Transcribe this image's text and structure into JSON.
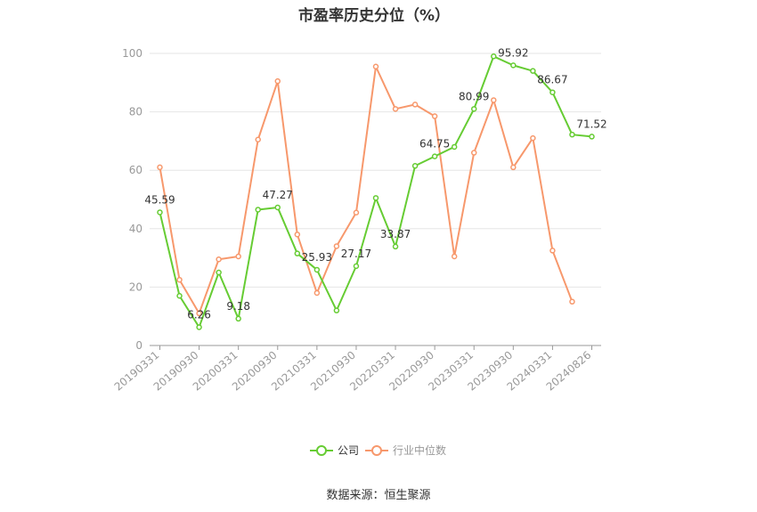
{
  "title": "市盈率历史分位（%）",
  "source": "数据来源：恒生聚源",
  "chart_data": {
    "type": "line",
    "title": "市盈率历史分位（%）",
    "ylim": [
      0,
      100
    ],
    "yticks": [
      0,
      20,
      40,
      60,
      80,
      100
    ],
    "grid": true,
    "legend_position": "bottom",
    "x": [
      "20190331",
      "20190630",
      "20190930",
      "20191231",
      "20200331",
      "20200630",
      "20200930",
      "20201231",
      "20210331",
      "20210630",
      "20210930",
      "20211231",
      "20220331",
      "20220630",
      "20220930",
      "20221231",
      "20230331",
      "20230630",
      "20230930",
      "20231231",
      "20240331",
      "20240630",
      "20240826"
    ],
    "x_tick_labels": [
      "20190331",
      "20190930",
      "20200331",
      "20200930",
      "20210331",
      "20210930",
      "20220331",
      "20220930",
      "20230331",
      "20230930",
      "20240331",
      "20240826"
    ],
    "series": [
      {
        "name": "公司",
        "color": "#66cc33",
        "values": [
          45.59,
          17.0,
          6.26,
          25.0,
          9.18,
          46.5,
          47.27,
          31.5,
          25.93,
          12.0,
          27.17,
          50.5,
          33.87,
          61.5,
          64.75,
          68.0,
          80.99,
          99.0,
          95.92,
          94.0,
          86.67,
          72.2,
          71.52
        ],
        "labels": {
          "0": "45.59",
          "2": "6.26",
          "4": "9.18",
          "6": "47.27",
          "8": "25.93",
          "10": "27.17",
          "12": "33.87",
          "14": "64.75",
          "16": "80.99",
          "18": "95.92",
          "20": "86.67",
          "22": "71.52"
        }
      },
      {
        "name": "行业中位数",
        "color": "#f7986c",
        "values": [
          61.0,
          22.5,
          11.0,
          29.5,
          30.5,
          70.5,
          90.5,
          38.0,
          18.0,
          34.0,
          45.5,
          95.5,
          81.0,
          82.5,
          78.5,
          30.5,
          66.0,
          84.0,
          61.0,
          71.0,
          32.5,
          15.0,
          null
        ]
      }
    ]
  }
}
